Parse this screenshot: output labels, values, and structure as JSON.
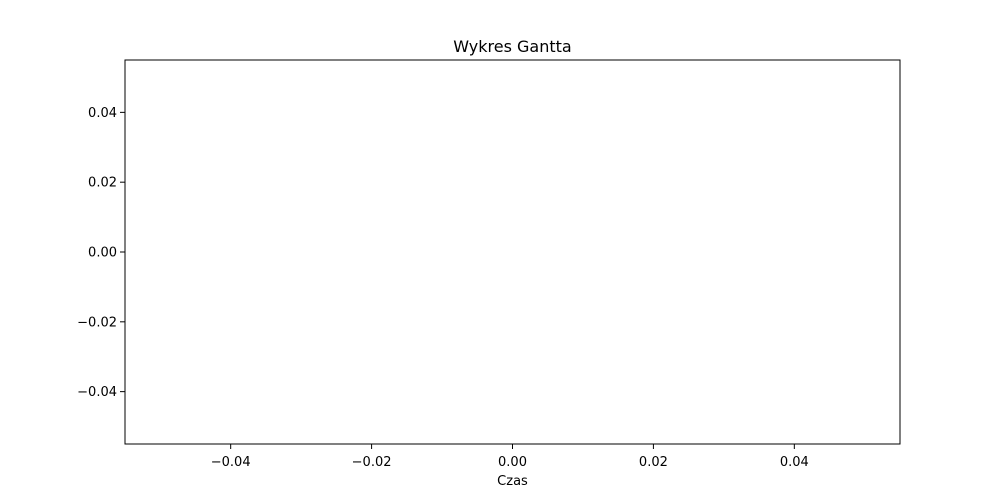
{
  "chart_data": {
    "type": "bar",
    "title": "Wykres Gantta",
    "xlabel": "Czas",
    "ylabel": "",
    "xlim": [
      -0.055,
      0.055
    ],
    "ylim": [
      -0.055,
      0.055
    ],
    "x_ticks": [
      -0.04,
      -0.02,
      0.0,
      0.02,
      0.04
    ],
    "x_tick_labels": [
      "−0.04",
      "−0.02",
      "0.00",
      "0.02",
      "0.04"
    ],
    "y_ticks": [
      0.04,
      0.02,
      0.0,
      -0.02,
      -0.04
    ],
    "y_tick_labels": [
      "0.04",
      "0.02",
      "0.00",
      "−0.02",
      "−0.04"
    ],
    "grid": false,
    "series": []
  }
}
